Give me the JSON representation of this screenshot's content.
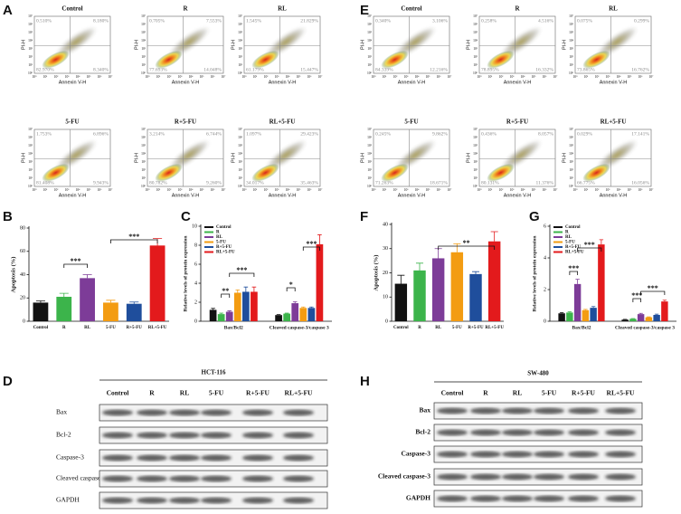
{
  "panel_labels": [
    "A",
    "B",
    "C",
    "D",
    "E",
    "F",
    "G",
    "H"
  ],
  "flow": {
    "x_label": "Annexin V-H",
    "y_label": "PI-H",
    "ticks": [
      "10⁰",
      "10¹",
      "10²",
      "10³",
      "10⁴",
      "10⁵",
      "10⁶",
      "10⁷"
    ],
    "panels": [
      {
        "title": "Control",
        "quadrants": [
          "0.510%",
          "8.180%",
          "82.970%",
          "8.340%"
        ]
      },
      {
        "title": "R",
        "quadrants": [
          "0.705%",
          "7.553%",
          "77.693%",
          "14.048%"
        ]
      },
      {
        "title": "RL",
        "quadrants": [
          "1.545%",
          "21.829%",
          "61.179%",
          "15.447%"
        ]
      },
      {
        "title": "5-FU",
        "quadrants": [
          "1.753%",
          "6.896%",
          "81.408%",
          "9.943%"
        ]
      },
      {
        "title": "R+5-FU",
        "quadrants": [
          "3.214%",
          "6.744%",
          "80.782%",
          "9.260%"
        ]
      },
      {
        "title": "RL+5-FU",
        "quadrants": [
          "1.097%",
          "29.423%",
          "34.017%",
          "35.463%"
        ]
      },
      {
        "title": "Control",
        "quadrants": [
          "0.340%",
          "3.106%",
          "84.339%",
          "12.216%"
        ]
      },
      {
        "title": "R",
        "quadrants": [
          "0.258%",
          "4.516%",
          "78.895%",
          "16.332%"
        ]
      },
      {
        "title": "RL",
        "quadrants": [
          "0.075%",
          "0.299%",
          "73.865%",
          "16.762%"
        ]
      },
      {
        "title": "5-FU",
        "quadrants": [
          "0.245%",
          "9.862%",
          "71.263%",
          "18.671%"
        ]
      },
      {
        "title": "R+5-FU",
        "quadrants": [
          "0.436%",
          "8.057%",
          "80.131%",
          "11.376%"
        ]
      },
      {
        "title": "RL+5-FU",
        "quadrants": [
          "0.029%",
          "17.141%",
          "66.775%",
          "16.056%"
        ]
      }
    ]
  },
  "chart_data": [
    {
      "type": "bar",
      "y_label": "Apoptosis (%)",
      "categories": [
        "Control",
        "R",
        "RL",
        "5-FU",
        "R+5-FU",
        "RL+5-FU"
      ],
      "values": [
        16,
        21,
        37,
        16,
        15,
        65
      ],
      "errors": [
        1.5,
        3,
        3,
        2,
        1.5,
        6
      ],
      "colors": [
        "#111111",
        "#3cb44b",
        "#7d3c98",
        "#f39c12",
        "#1f4e9c",
        "#e31a1c"
      ],
      "ylim": [
        0,
        80
      ],
      "yticks": [
        0,
        20,
        40,
        60,
        80
      ],
      "annotations": [
        "***",
        "***"
      ]
    },
    {
      "type": "bar",
      "y_label": "Relative levels of protein expression",
      "categories": [
        "Bax/Bcl2",
        "Cleaved caspase-3/caspase 3"
      ],
      "series": [
        {
          "name": "Control",
          "color": "#111111",
          "values": [
            1.2,
            0.65
          ],
          "errors": [
            0.15,
            0.05
          ]
        },
        {
          "name": "R",
          "color": "#3cb44b",
          "values": [
            0.75,
            0.8
          ],
          "errors": [
            0.1,
            0.05
          ]
        },
        {
          "name": "RL",
          "color": "#7d3c98",
          "values": [
            1.0,
            1.9
          ],
          "errors": [
            0.1,
            0.15
          ]
        },
        {
          "name": "5-FU",
          "color": "#f39c12",
          "values": [
            3.0,
            1.4
          ],
          "errors": [
            0.3,
            0.1
          ]
        },
        {
          "name": "R+5-FU",
          "color": "#1f4e9c",
          "values": [
            3.1,
            1.4
          ],
          "errors": [
            0.5,
            0.1
          ]
        },
        {
          "name": "RL+5-FU",
          "color": "#e31a1c",
          "values": [
            3.1,
            8.1
          ],
          "errors": [
            0.5,
            1.0
          ]
        }
      ],
      "ylim": [
        0,
        10
      ],
      "yticks": [
        0,
        2,
        4,
        6,
        8,
        10
      ],
      "annotations": [
        "**",
        "***",
        "*",
        "***"
      ]
    },
    {
      "type": "bar",
      "y_label": "Apoptosis (%)",
      "categories": [
        "Control",
        "R",
        "RL",
        "5-FU",
        "R+5-FU",
        "RL+5-FU"
      ],
      "values": [
        15.5,
        21,
        26,
        28.5,
        19.5,
        33
      ],
      "errors": [
        3.5,
        3,
        4,
        3.5,
        1,
        4
      ],
      "colors": [
        "#111111",
        "#3cb44b",
        "#7d3c98",
        "#f39c12",
        "#1f4e9c",
        "#e31a1c"
      ],
      "ylim": [
        0,
        40
      ],
      "yticks": [
        0,
        10,
        20,
        30,
        40
      ],
      "annotations": [
        "**"
      ]
    },
    {
      "type": "bar",
      "y_label": "Relative levels of protein expression",
      "categories": [
        "Bax/Bcl2",
        "Cleaved caspase-3/caspase 3"
      ],
      "series": [
        {
          "name": "Control",
          "color": "#111111",
          "values": [
            0.5,
            0.1
          ],
          "errors": [
            0.05,
            0.02
          ]
        },
        {
          "name": "R",
          "color": "#3cb44b",
          "values": [
            0.55,
            0.15
          ],
          "errors": [
            0.05,
            0.02
          ]
        },
        {
          "name": "RL",
          "color": "#7d3c98",
          "values": [
            2.35,
            0.45
          ],
          "errors": [
            0.3,
            0.05
          ]
        },
        {
          "name": "5-FU",
          "color": "#f39c12",
          "values": [
            0.7,
            0.25
          ],
          "errors": [
            0.05,
            0.03
          ]
        },
        {
          "name": "R+5-FU",
          "color": "#1f4e9c",
          "values": [
            0.85,
            0.4
          ],
          "errors": [
            0.08,
            0.05
          ]
        },
        {
          "name": "RL+5-FU",
          "color": "#e31a1c",
          "values": [
            4.85,
            1.25
          ],
          "errors": [
            0.3,
            0.08
          ]
        }
      ],
      "ylim": [
        0,
        6
      ],
      "yticks": [
        0,
        2,
        4,
        6
      ],
      "annotations": [
        "***",
        "***",
        "***",
        "***"
      ]
    }
  ],
  "blots": [
    {
      "title": "HCT-116",
      "columns": [
        "Control",
        "R",
        "RL",
        "5-FU",
        "R+5-FU",
        "RL+5-FU"
      ],
      "rows": [
        "Bax",
        "Bcl-2",
        "Caspase-3",
        "Cleaved caspase-3",
        "GAPDH"
      ]
    },
    {
      "title": "SW-480",
      "columns": [
        "Control",
        "R",
        "RL",
        "5-FU",
        "R+5-FU",
        "RL+5-FU"
      ],
      "rows": [
        "Bax",
        "Bcl-2",
        "Caspase-3",
        "Cleaved caspase-3",
        "GAPDH"
      ]
    }
  ]
}
